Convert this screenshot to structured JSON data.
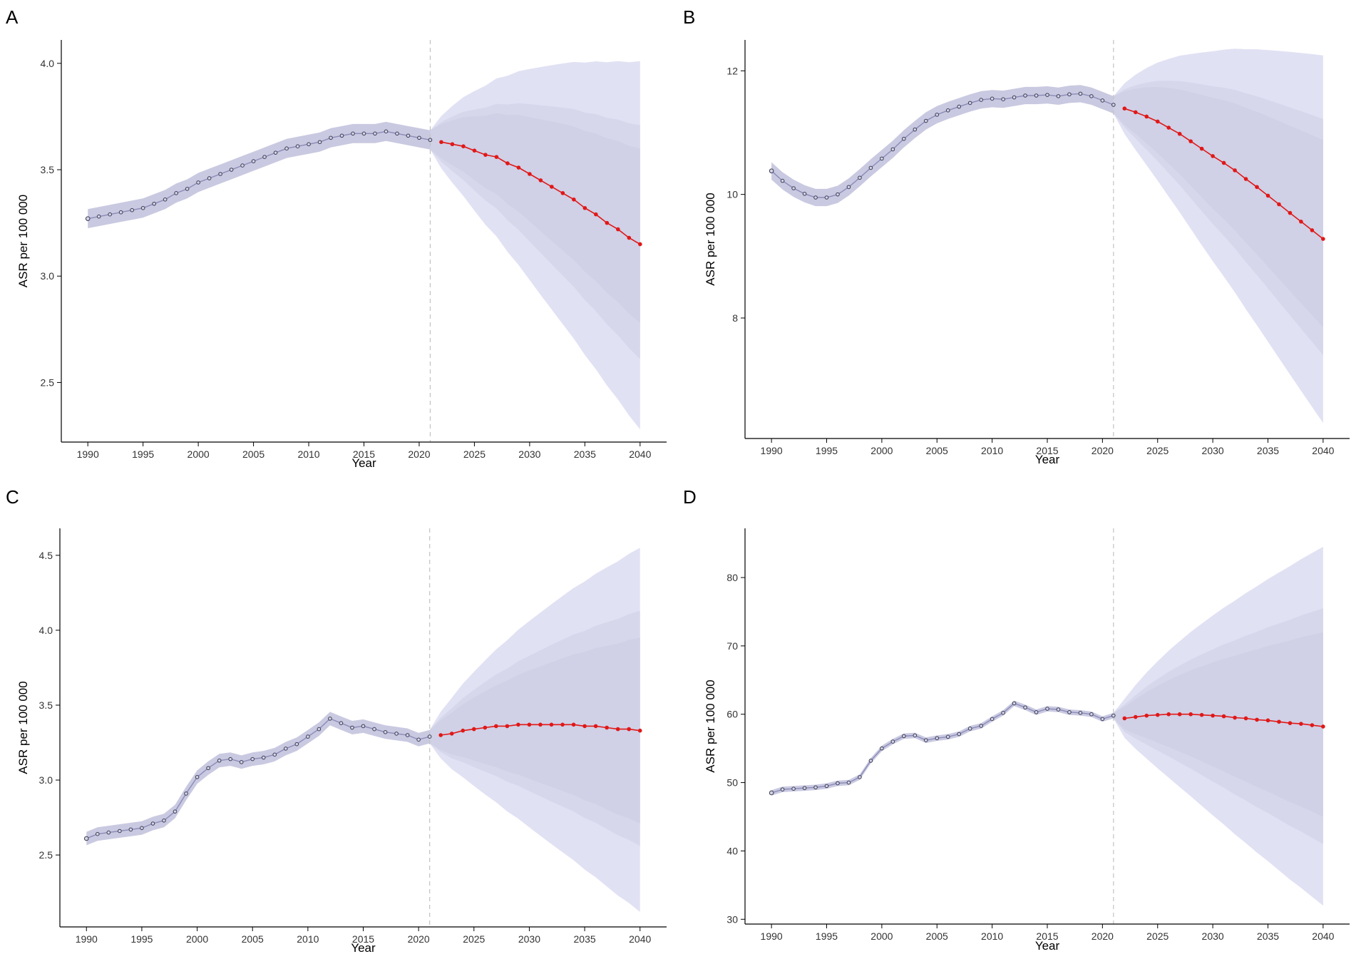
{
  "colors": {
    "band_outer": "#e1e1f4",
    "band_mid": "#d7d7ec",
    "band_inner": "#d0d0e6",
    "observed_band": "#c9c9e1",
    "observed_line": "#8b8bb8",
    "observed_point_stroke": "#3b3b56",
    "prediction": "#e01818",
    "divider": "#c2c2c2"
  },
  "chart_data": [
    {
      "id": "A",
      "panel_label": "A",
      "type": "line",
      "xlabel": "Year",
      "ylabel": "ASR per 100 000",
      "xlim": [
        1987.6,
        2042.4
      ],
      "ylim": [
        2.22,
        4.11
      ],
      "x_ticks": [
        1990,
        1995,
        2000,
        2005,
        2010,
        2015,
        2020,
        2025,
        2030,
        2035,
        2040
      ],
      "y_ticks": [
        2.5,
        3.0,
        3.5,
        4.0
      ],
      "y_tick_labels": [
        "2.5",
        "3.0",
        "3.5",
        "4.0"
      ],
      "divider_year": 2021,
      "observed_band_halfwidth": 0.045,
      "observed": {
        "x": [
          1990,
          1991,
          1992,
          1993,
          1994,
          1995,
          1996,
          1997,
          1998,
          1999,
          2000,
          2001,
          2002,
          2003,
          2004,
          2005,
          2006,
          2007,
          2008,
          2009,
          2010,
          2011,
          2012,
          2013,
          2014,
          2015,
          2016,
          2017,
          2018,
          2019,
          2020,
          2021
        ],
        "y": [
          3.27,
          3.28,
          3.29,
          3.3,
          3.31,
          3.32,
          3.34,
          3.36,
          3.39,
          3.41,
          3.44,
          3.46,
          3.48,
          3.5,
          3.52,
          3.54,
          3.56,
          3.58,
          3.6,
          3.61,
          3.62,
          3.63,
          3.65,
          3.66,
          3.67,
          3.67,
          3.67,
          3.68,
          3.67,
          3.66,
          3.65,
          3.64
        ]
      },
      "prediction": {
        "x": [
          2021,
          2022,
          2023,
          2024,
          2025,
          2026,
          2027,
          2028,
          2029,
          2030,
          2031,
          2032,
          2033,
          2034,
          2035,
          2036,
          2037,
          2038,
          2039,
          2040
        ],
        "y": [
          3.64,
          3.63,
          3.62,
          3.61,
          3.59,
          3.57,
          3.56,
          3.53,
          3.51,
          3.48,
          3.45,
          3.42,
          3.39,
          3.36,
          3.32,
          3.29,
          3.25,
          3.22,
          3.18,
          3.15
        ]
      },
      "uncertainty_bands": [
        {
          "level": "outer",
          "upper_end": 4.01,
          "lower_end": 2.28
        },
        {
          "level": "mid",
          "upper_end": 3.71,
          "lower_end": 2.61
        },
        {
          "level": "inner",
          "upper_end": 3.6,
          "lower_end": 2.78
        }
      ]
    },
    {
      "id": "B",
      "panel_label": "B",
      "type": "line",
      "xlabel": "Year",
      "ylabel": "ASR per 100 000",
      "xlim": [
        1987.6,
        2042.4
      ],
      "ylim": [
        6.05,
        12.5
      ],
      "x_ticks": [
        1990,
        1995,
        2000,
        2005,
        2010,
        2015,
        2020,
        2025,
        2030,
        2035,
        2040
      ],
      "y_ticks": [
        8,
        10,
        12
      ],
      "y_tick_labels": [
        "8",
        "10",
        "12"
      ],
      "divider_year": 2021,
      "observed_band_halfwidth": 0.14,
      "observed": {
        "x": [
          1990,
          1991,
          1992,
          1993,
          1994,
          1995,
          1996,
          1997,
          1998,
          1999,
          2000,
          2001,
          2002,
          2003,
          2004,
          2005,
          2006,
          2007,
          2008,
          2009,
          2010,
          2011,
          2012,
          2013,
          2014,
          2015,
          2016,
          2017,
          2018,
          2019,
          2020,
          2021
        ],
        "y": [
          10.38,
          10.22,
          10.1,
          10.01,
          9.95,
          9.95,
          10.0,
          10.12,
          10.27,
          10.43,
          10.58,
          10.73,
          10.9,
          11.05,
          11.19,
          11.29,
          11.36,
          11.42,
          11.48,
          11.53,
          11.55,
          11.54,
          11.57,
          11.6,
          11.6,
          11.61,
          11.59,
          11.62,
          11.63,
          11.59,
          11.52,
          11.45
        ]
      },
      "prediction": {
        "x": [
          2021,
          2022,
          2023,
          2024,
          2025,
          2026,
          2027,
          2028,
          2029,
          2030,
          2031,
          2032,
          2033,
          2034,
          2035,
          2036,
          2037,
          2038,
          2039,
          2040
        ],
        "y": [
          11.45,
          11.39,
          11.33,
          11.26,
          11.18,
          11.08,
          10.98,
          10.86,
          10.74,
          10.62,
          10.51,
          10.39,
          10.25,
          10.12,
          9.98,
          9.84,
          9.7,
          9.56,
          9.42,
          9.28
        ]
      },
      "uncertainty_bands": [
        {
          "level": "outer",
          "upper_end": 12.25,
          "lower_end": 6.3
        },
        {
          "level": "mid",
          "upper_end": 11.22,
          "lower_end": 7.4
        },
        {
          "level": "inner",
          "upper_end": 10.88,
          "lower_end": 7.85
        }
      ]
    },
    {
      "id": "C",
      "panel_label": "C",
      "type": "line",
      "xlabel": "Year",
      "ylabel": "ASR per 100 000",
      "xlim": [
        1987.6,
        2042.4
      ],
      "ylim": [
        2.02,
        4.68
      ],
      "x_ticks": [
        1990,
        1995,
        2000,
        2005,
        2010,
        2015,
        2020,
        2025,
        2030,
        2035,
        2040
      ],
      "y_ticks": [
        2.5,
        3.0,
        3.5,
        4.0,
        4.5
      ],
      "y_tick_labels": [
        "2.5",
        "3.0",
        "3.5",
        "4.0",
        "4.5"
      ],
      "divider_year": 2021,
      "observed_band_halfwidth": 0.045,
      "observed": {
        "x": [
          1990,
          1991,
          1992,
          1993,
          1994,
          1995,
          1996,
          1997,
          1998,
          1999,
          2000,
          2001,
          2002,
          2003,
          2004,
          2005,
          2006,
          2007,
          2008,
          2009,
          2010,
          2011,
          2012,
          2013,
          2014,
          2015,
          2016,
          2017,
          2018,
          2019,
          2020,
          2021
        ],
        "y": [
          2.61,
          2.64,
          2.65,
          2.66,
          2.67,
          2.68,
          2.71,
          2.73,
          2.79,
          2.91,
          3.02,
          3.08,
          3.13,
          3.14,
          3.12,
          3.14,
          3.15,
          3.17,
          3.21,
          3.24,
          3.29,
          3.34,
          3.41,
          3.38,
          3.35,
          3.36,
          3.34,
          3.32,
          3.31,
          3.3,
          3.27,
          3.29
        ]
      },
      "prediction": {
        "x": [
          2021,
          2022,
          2023,
          2024,
          2025,
          2026,
          2027,
          2028,
          2029,
          2030,
          2031,
          2032,
          2033,
          2034,
          2035,
          2036,
          2037,
          2038,
          2039,
          2040
        ],
        "y": [
          3.29,
          3.3,
          3.31,
          3.33,
          3.34,
          3.35,
          3.36,
          3.36,
          3.37,
          3.37,
          3.37,
          3.37,
          3.37,
          3.37,
          3.36,
          3.36,
          3.35,
          3.34,
          3.34,
          3.33
        ]
      },
      "uncertainty_bands": [
        {
          "level": "outer",
          "upper_end": 4.55,
          "lower_end": 2.12
        },
        {
          "level": "mid",
          "upper_end": 4.13,
          "lower_end": 2.56
        },
        {
          "level": "inner",
          "upper_end": 3.95,
          "lower_end": 2.71
        }
      ]
    },
    {
      "id": "D",
      "panel_label": "D",
      "type": "line",
      "xlabel": "Year",
      "ylabel": "ASR per 100 000",
      "xlim": [
        1987.6,
        2042.4
      ],
      "ylim": [
        29.3,
        87.2
      ],
      "x_ticks": [
        1990,
        1995,
        2000,
        2005,
        2010,
        2015,
        2020,
        2025,
        2030,
        2035,
        2040
      ],
      "y_ticks": [
        30,
        40,
        50,
        60,
        70,
        80
      ],
      "y_tick_labels": [
        "30",
        "40",
        "50",
        "60",
        "70",
        "80"
      ],
      "divider_year": 2021,
      "observed_band_halfwidth": 0.4,
      "observed": {
        "x": [
          1990,
          1991,
          1992,
          1993,
          1994,
          1995,
          1996,
          1997,
          1998,
          1999,
          2000,
          2001,
          2002,
          2003,
          2004,
          2005,
          2006,
          2007,
          2008,
          2009,
          2010,
          2011,
          2012,
          2013,
          2014,
          2015,
          2016,
          2017,
          2018,
          2019,
          2020,
          2021
        ],
        "y": [
          48.5,
          49.0,
          49.1,
          49.2,
          49.3,
          49.5,
          49.9,
          50.0,
          50.8,
          53.2,
          55.0,
          56.0,
          56.8,
          56.9,
          56.2,
          56.5,
          56.7,
          57.1,
          57.9,
          58.3,
          59.3,
          60.2,
          61.6,
          61.0,
          60.3,
          60.8,
          60.7,
          60.3,
          60.2,
          60.0,
          59.3,
          59.8
        ]
      },
      "prediction": {
        "x": [
          2021,
          2022,
          2023,
          2024,
          2025,
          2026,
          2027,
          2028,
          2029,
          2030,
          2031,
          2032,
          2033,
          2034,
          2035,
          2036,
          2037,
          2038,
          2039,
          2040
        ],
        "y": [
          59.8,
          59.4,
          59.6,
          59.8,
          59.9,
          60.0,
          60.0,
          60.0,
          59.9,
          59.8,
          59.7,
          59.5,
          59.4,
          59.2,
          59.1,
          58.9,
          58.7,
          58.6,
          58.4,
          58.2
        ]
      },
      "uncertainty_bands": [
        {
          "level": "outer",
          "upper_end": 84.5,
          "lower_end": 32.0
        },
        {
          "level": "mid",
          "upper_end": 75.5,
          "lower_end": 41.0
        },
        {
          "level": "inner",
          "upper_end": 72.0,
          "lower_end": 45.0
        }
      ]
    }
  ]
}
